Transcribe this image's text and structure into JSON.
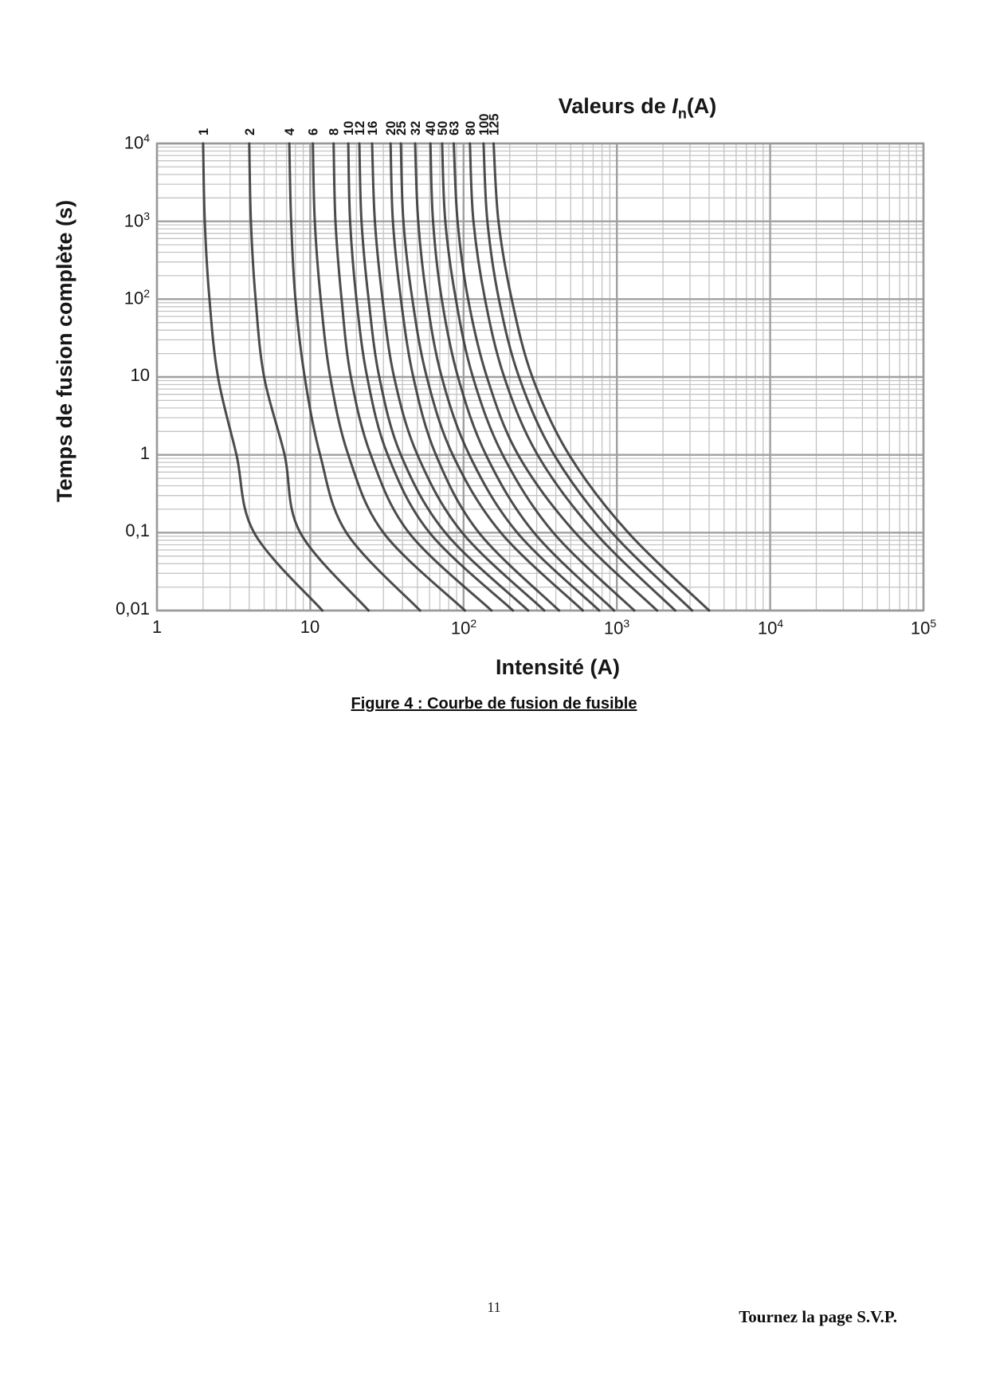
{
  "page": {
    "caption": "Figure 4 : Courbe de fusion de fusible",
    "footer": {
      "page_number": "11",
      "turn_note": "Tournez la page S.V.P."
    }
  },
  "chart_data": {
    "type": "line",
    "title_parts": {
      "prefix": "Valeurs de ",
      "variable": "I",
      "subscript": "n",
      "suffix": "(A)"
    },
    "xlabel": "Intensité (A)",
    "ylabel": "Temps de fusion complète (s)",
    "x_scale": "log",
    "y_scale": "log",
    "xlim": [
      1,
      100000
    ],
    "ylim": [
      0.01,
      10000
    ],
    "grid": true,
    "legend_position": "rotated-labels-above-plot",
    "x_ticks": [
      {
        "v": 1,
        "base": "1",
        "exp": ""
      },
      {
        "v": 10,
        "base": "10",
        "exp": ""
      },
      {
        "v": 100,
        "base": "10",
        "exp": "2"
      },
      {
        "v": 1000,
        "base": "10",
        "exp": "3"
      },
      {
        "v": 10000,
        "base": "10",
        "exp": "4"
      },
      {
        "v": 100000,
        "base": "10",
        "exp": "5"
      }
    ],
    "y_ticks": [
      {
        "v": 10000,
        "base": "10",
        "exp": "4"
      },
      {
        "v": 1000,
        "base": "10",
        "exp": "3"
      },
      {
        "v": 100,
        "base": "10",
        "exp": "2"
      },
      {
        "v": 10,
        "base": "10",
        "exp": ""
      },
      {
        "v": 1,
        "base": "1",
        "exp": ""
      },
      {
        "v": 0.1,
        "base": "0,1",
        "exp": ""
      },
      {
        "v": 0.01,
        "base": "0,01",
        "exp": ""
      }
    ],
    "time_points_s": [
      10000,
      1000,
      100,
      10,
      1,
      0.1,
      0.01
    ],
    "series": [
      {
        "name": "1",
        "in_amps": 1,
        "current_amps": [
          2.0,
          2.05,
          2.2,
          2.5,
          3.3,
          4.3,
          12
        ]
      },
      {
        "name": "2",
        "in_amps": 2,
        "current_amps": [
          4.0,
          4.1,
          4.4,
          5.0,
          6.8,
          8.6,
          24
        ]
      },
      {
        "name": "4",
        "in_amps": 4,
        "current_amps": [
          7.3,
          7.5,
          8.0,
          9.2,
          11.6,
          17.2,
          52
        ]
      },
      {
        "name": "6",
        "in_amps": 6,
        "current_amps": [
          10.4,
          10.7,
          11.7,
          13.5,
          17.7,
          30,
          102
        ]
      },
      {
        "name": "8",
        "in_amps": 8,
        "current_amps": [
          14.2,
          14.6,
          16.0,
          18.4,
          24.8,
          44,
          152
        ]
      },
      {
        "name": "10",
        "in_amps": 10,
        "current_amps": [
          17.7,
          18.2,
          20.0,
          23.5,
          32,
          60,
          210
        ]
      },
      {
        "name": "12",
        "in_amps": 12,
        "current_amps": [
          20.9,
          21.6,
          24.0,
          28.2,
          39,
          76,
          264
        ]
      },
      {
        "name": "16",
        "in_amps": 16,
        "current_amps": [
          25.3,
          26.4,
          29.6,
          35.2,
          50,
          98,
          336
        ]
      },
      {
        "name": "20",
        "in_amps": 20,
        "current_amps": [
          33.4,
          34.6,
          39.0,
          47.0,
          66,
          126,
          420
        ]
      },
      {
        "name": "25",
        "in_amps": 25,
        "current_amps": [
          39.0,
          40.5,
          46.3,
          57.5,
          85,
          175,
          600
        ]
      },
      {
        "name": "32",
        "in_amps": 32,
        "current_amps": [
          48.3,
          50.6,
          57.6,
          72.0,
          109,
          224,
          768
        ]
      },
      {
        "name": "40",
        "in_amps": 40,
        "current_amps": [
          60.8,
          63.2,
          72.0,
          92.0,
          140,
          288,
          960
        ]
      },
      {
        "name": "50",
        "in_amps": 50,
        "current_amps": [
          72.5,
          76.0,
          89.0,
          115,
          180,
          385,
          1300
        ]
      },
      {
        "name": "63",
        "in_amps": 63,
        "current_amps": [
          86.3,
          91.4,
          107,
          142,
          227,
          535,
          1830
        ]
      },
      {
        "name": "80",
        "in_amps": 80,
        "current_amps": [
          110,
          116,
          138,
          184,
          304,
          720,
          2400
        ]
      },
      {
        "name": "100",
        "in_amps": 100,
        "current_amps": [
          135,
          143,
          170,
          230,
          390,
          930,
          3100
        ]
      },
      {
        "name": "125",
        "in_amps": 125,
        "current_amps": [
          157,
          169,
          206,
          281,
          488,
          1187,
          4000
        ]
      }
    ],
    "colors": {
      "curve": "#383838",
      "grid_minor": "#c4c4c4",
      "grid_major": "#a0a0a0",
      "frame": "#999999",
      "text": "#161616"
    }
  }
}
